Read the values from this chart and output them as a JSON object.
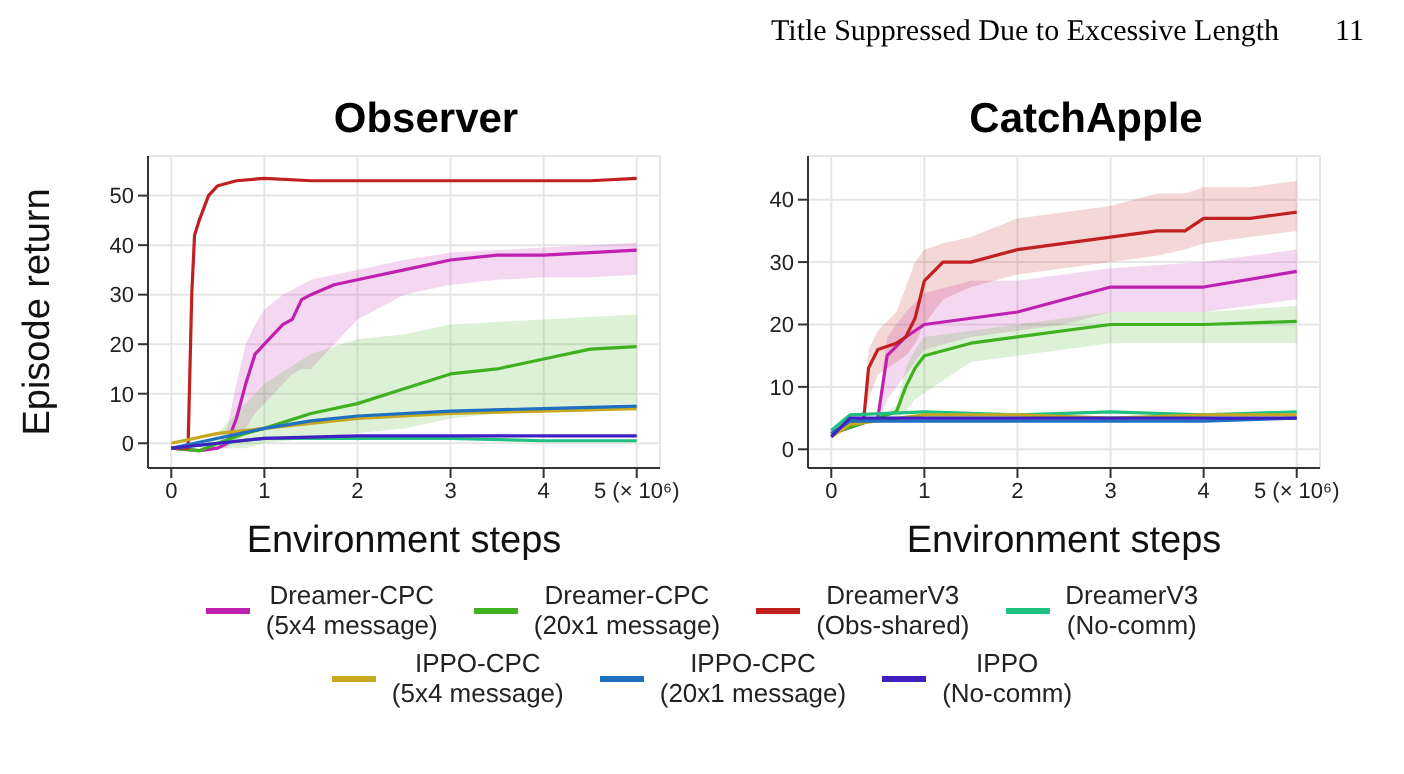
{
  "chart_data": [
    {
      "type": "line",
      "title": "Observer",
      "xlabel": "Environment steps",
      "ylabel": "Episode return",
      "annotations": [
        "Title Suppressed Due to Excessive Length",
        "11"
      ],
      "xlim": [
        -0.25,
        5.25
      ],
      "xticks": [
        0,
        1,
        2,
        3,
        4,
        {
          "value": 5,
          "label": "5 (× 10⁶)"
        }
      ],
      "ylim": [
        -5,
        58
      ],
      "yticks": [
        0,
        10,
        20,
        30,
        40,
        50
      ],
      "grid": true,
      "legend": "bottom",
      "series": [
        {
          "name": "Dreamer-CPC (5x4 message)",
          "color": "#c020b0",
          "x": [
            0,
            0.3,
            0.5,
            0.6,
            0.7,
            0.8,
            0.9,
            1.0,
            1.2,
            1.3,
            1.4,
            1.5,
            1.75,
            2,
            2.5,
            3,
            3.5,
            4,
            4.5,
            5
          ],
          "values": [
            -1,
            -1.5,
            -1,
            0,
            5,
            12,
            18,
            20,
            24,
            25,
            29,
            30,
            32,
            33,
            35,
            37,
            38,
            38,
            38.5,
            39
          ],
          "lower": [
            -1,
            -1.5,
            -1,
            -1,
            1,
            3,
            6,
            8,
            12,
            14,
            15,
            15,
            20,
            25,
            30,
            32,
            33,
            33.5,
            33.5,
            34
          ],
          "upper": [
            -1,
            -1.5,
            -0.5,
            3,
            12,
            20,
            24,
            27,
            30,
            31,
            32,
            33,
            34,
            35,
            37,
            38.5,
            39,
            39.5,
            40,
            40.5
          ]
        },
        {
          "name": "Dreamer-CPC (20x1 message)",
          "color": "#40b020",
          "x": [
            0,
            0.3,
            0.5,
            0.8,
            1,
            1.5,
            2,
            2.5,
            3,
            3.5,
            4,
            4.5,
            5
          ],
          "values": [
            -1,
            -1.5,
            0,
            2,
            3,
            6,
            8,
            11,
            14,
            15,
            17,
            19,
            19.5
          ],
          "lower": [
            -1,
            -1.5,
            -1,
            -1,
            0,
            1,
            2,
            3,
            5,
            6,
            7,
            7.5,
            8
          ],
          "upper": [
            -1,
            -1.5,
            2,
            8,
            12,
            18,
            21,
            22,
            24,
            24.5,
            25,
            25.5,
            26
          ]
        },
        {
          "name": "DreamerV3 (Obs-shared)",
          "color": "#c02020",
          "x": [
            0,
            0.15,
            0.18,
            0.22,
            0.25,
            0.3,
            0.4,
            0.5,
            0.7,
            1,
            1.5,
            2,
            2.5,
            3,
            3.5,
            4,
            4.5,
            5
          ],
          "values": [
            -1,
            -1,
            -1,
            30,
            42,
            45,
            50,
            52,
            53,
            53.5,
            53,
            53,
            53,
            53,
            53,
            53,
            53,
            53.5
          ]
        },
        {
          "name": "DreamerV3 (No-comm)",
          "color": "#20c080",
          "x": [
            0,
            0.5,
            1,
            2,
            3,
            4,
            5
          ],
          "values": [
            -1,
            0,
            1,
            1,
            1,
            0.5,
            0.5
          ]
        },
        {
          "name": "IPPO-CPC (5x4 message)",
          "color": "#c8a820",
          "x": [
            0,
            0.5,
            1,
            1.5,
            2,
            3,
            4,
            5
          ],
          "values": [
            0,
            2,
            3,
            4,
            5,
            6,
            6.5,
            7
          ]
        },
        {
          "name": "IPPO-CPC (20x1 message)",
          "color": "#2070c0",
          "x": [
            0,
            0.5,
            1,
            1.5,
            2,
            3,
            4,
            5
          ],
          "values": [
            -1,
            1,
            3,
            4.5,
            5.5,
            6.5,
            7,
            7.5
          ]
        },
        {
          "name": "IPPO (No-comm)",
          "color": "#4020c0",
          "x": [
            0,
            0.5,
            1,
            2,
            3,
            4,
            5
          ],
          "values": [
            -1,
            0,
            1,
            1.5,
            1.5,
            1.5,
            1.5
          ]
        }
      ]
    },
    {
      "type": "line",
      "title": "CatchApple",
      "xlabel": "Environment steps",
      "xlim": [
        -0.25,
        5.25
      ],
      "xticks": [
        0,
        1,
        2,
        3,
        4,
        {
          "value": 5,
          "label": "5 (× 10⁶)"
        }
      ],
      "ylim": [
        -3,
        47
      ],
      "yticks": [
        0,
        10,
        20,
        30,
        40
      ],
      "grid": true,
      "series": [
        {
          "color": "#c020b0",
          "x": [
            0,
            0.5,
            0.55,
            0.6,
            0.8,
            1,
            1.5,
            2,
            2.5,
            3,
            4,
            5
          ],
          "values": [
            2.5,
            5,
            10,
            15,
            18,
            20,
            21,
            22,
            24,
            26,
            26,
            28.5
          ],
          "lower": [
            2.5,
            5,
            6,
            8,
            12,
            16,
            18,
            19,
            20,
            22,
            22,
            24
          ],
          "upper": [
            2.5,
            5,
            12,
            18,
            22,
            25,
            27,
            27,
            28,
            29,
            30,
            32
          ]
        },
        {
          "color": "#40b020",
          "x": [
            0,
            0.5,
            0.7,
            0.8,
            0.9,
            1,
            1.5,
            2,
            3,
            4,
            5
          ],
          "values": [
            2.5,
            5,
            6,
            10,
            13,
            15,
            17,
            18,
            20,
            20,
            20.5
          ],
          "lower": [
            2.5,
            5,
            5,
            6,
            8,
            9,
            14,
            15,
            17,
            17,
            17
          ],
          "upper": [
            2.5,
            5,
            7,
            13,
            16,
            18,
            19,
            20,
            22,
            22,
            23
          ]
        },
        {
          "color": "#c02020",
          "x": [
            0,
            0.2,
            0.35,
            0.4,
            0.5,
            0.7,
            0.8,
            0.9,
            1,
            1.2,
            1.5,
            2,
            2.5,
            3,
            3.5,
            3.8,
            4,
            4.5,
            5
          ],
          "values": [
            2.5,
            4,
            5,
            13,
            16,
            17,
            18,
            21,
            27,
            30,
            30,
            32,
            33,
            34,
            35,
            35,
            37,
            37,
            38
          ],
          "lower": [
            2.5,
            5,
            5,
            8,
            12,
            14,
            15,
            17,
            20,
            24,
            26,
            28,
            29,
            30,
            31,
            32,
            33,
            34,
            35
          ],
          "upper": [
            2.5,
            5,
            6,
            16,
            19,
            22,
            26,
            30,
            32,
            33,
            34,
            37,
            38,
            39,
            41,
            41,
            42,
            42,
            43
          ]
        },
        {
          "color": "#20c080",
          "x": [
            0,
            0.2,
            1,
            2,
            3,
            4,
            5
          ],
          "values": [
            3,
            5.5,
            6,
            5.5,
            6,
            5.5,
            6
          ]
        },
        {
          "color": "#c8a820",
          "x": [
            0,
            0.2,
            1,
            2,
            3,
            4,
            5
          ],
          "values": [
            2,
            4,
            5.5,
            5.5,
            5,
            5.5,
            5.5
          ]
        },
        {
          "color": "#2070c0",
          "x": [
            0,
            0.2,
            1,
            2,
            3,
            4,
            5
          ],
          "values": [
            2.5,
            4.5,
            4.5,
            4.5,
            4.5,
            4.5,
            5
          ]
        },
        {
          "color": "#4020c0",
          "x": [
            0,
            0.2,
            1,
            2,
            3,
            4,
            5
          ],
          "values": [
            2,
            5,
            5,
            5,
            5,
            5,
            5
          ]
        }
      ]
    }
  ]
}
